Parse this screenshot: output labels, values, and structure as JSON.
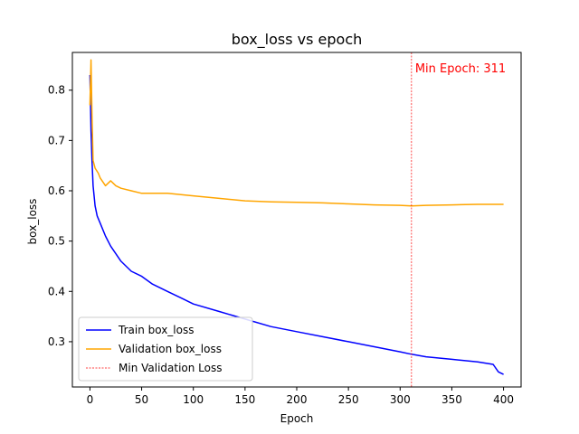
{
  "chart_data": {
    "type": "line",
    "title": "box_loss vs epoch",
    "xlabel": "Epoch",
    "ylabel": "box_loss",
    "xlim": [
      -17,
      417
    ],
    "ylim": [
      0.21,
      0.875
    ],
    "xticks": [
      0,
      50,
      100,
      150,
      200,
      250,
      300,
      350,
      400
    ],
    "yticks": [
      0.3,
      0.4,
      0.5,
      0.6,
      0.7,
      0.8
    ],
    "xtick_labels": [
      "0",
      "50",
      "100",
      "150",
      "200",
      "250",
      "300",
      "350",
      "400"
    ],
    "ytick_labels": [
      "0.3",
      "0.4",
      "0.5",
      "0.6",
      "0.7",
      "0.8"
    ],
    "grid": false,
    "legend": "lower-left",
    "series": [
      {
        "name": "Train box_loss",
        "color": "#0000ff",
        "x": [
          0,
          1,
          2,
          3,
          4,
          5,
          7,
          10,
          15,
          20,
          25,
          30,
          40,
          50,
          60,
          75,
          90,
          100,
          125,
          150,
          175,
          200,
          225,
          250,
          275,
          300,
          311,
          325,
          350,
          375,
          390,
          395,
          400
        ],
        "y": [
          0.83,
          0.72,
          0.66,
          0.61,
          0.59,
          0.57,
          0.55,
          0.535,
          0.51,
          0.49,
          0.475,
          0.46,
          0.44,
          0.43,
          0.415,
          0.4,
          0.385,
          0.375,
          0.36,
          0.345,
          0.33,
          0.32,
          0.31,
          0.3,
          0.29,
          0.28,
          0.275,
          0.27,
          0.265,
          0.26,
          0.255,
          0.24,
          0.235
        ]
      },
      {
        "name": "Validation box_loss",
        "color": "#ffa500",
        "x": [
          0,
          1,
          2,
          3,
          5,
          8,
          10,
          15,
          20,
          25,
          30,
          40,
          50,
          75,
          100,
          125,
          150,
          175,
          200,
          225,
          250,
          275,
          300,
          311,
          325,
          350,
          375,
          400
        ],
        "y": [
          0.77,
          0.86,
          0.75,
          0.66,
          0.645,
          0.635,
          0.625,
          0.61,
          0.62,
          0.61,
          0.605,
          0.6,
          0.595,
          0.595,
          0.59,
          0.585,
          0.58,
          0.578,
          0.577,
          0.576,
          0.574,
          0.572,
          0.571,
          0.57,
          0.571,
          0.572,
          0.573,
          0.573
        ]
      }
    ],
    "reference_line": {
      "name": "Min Validation Loss",
      "x": 311,
      "color": "#ff0000",
      "style": "dashed"
    },
    "annotation": "Min Epoch: 311"
  }
}
